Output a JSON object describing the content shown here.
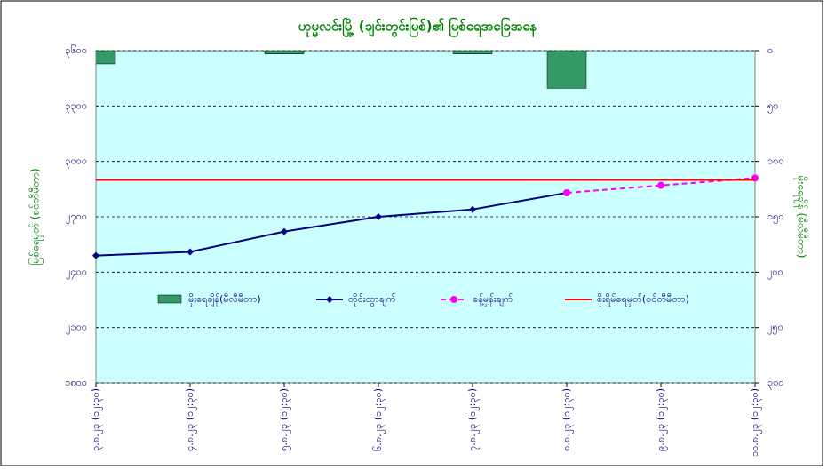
{
  "chart_data": {
    "type": "combo",
    "title": "ဟုမ္မလင်းမြို့ (ချင်းတွင်းမြစ်)၏ မြစ်ရေအခြေအနေ",
    "y_label": "မြစ်ရေမှတ် (စင်တီမီတာ)",
    "y2_label": "မိုးရေချိန် (မီလီမီတာ)",
    "categories": [
      "၃.၈.၂၃ (၁၂:၃၀)",
      "၄.၈.၂၃ (၁၂:၃၀)",
      "၅.၈.၂၃ (၁၂:၃၀)",
      "၆.၈.၂၃ (၁၂:၃၀)",
      "၇.၈.၂၃ (၁၂:၃၀)",
      "၈.၈.၂၃ (၁၂:၃၀)",
      "၉.၈.၂၃ (၁၂:၃၀)",
      "၁၀.၈.၂၃ (၁၂:၃၀)"
    ],
    "ylim": [
      1800,
      3600
    ],
    "yticks": [
      {
        "value": 1800,
        "label": "၁၈၀၀"
      },
      {
        "value": 2100,
        "label": "၂၁၀၀"
      },
      {
        "value": 2400,
        "label": "၂၄၀၀"
      },
      {
        "value": 2700,
        "label": "၂၇၀၀"
      },
      {
        "value": 3000,
        "label": "၃၀၀၀"
      },
      {
        "value": 3300,
        "label": "၃၃၀၀"
      },
      {
        "value": 3600,
        "label": "၃၆၀၀"
      }
    ],
    "y2lim": [
      300,
      0
    ],
    "y2ticks": [
      {
        "value": 0,
        "label": "၀"
      },
      {
        "value": 50,
        "label": "၅၀"
      },
      {
        "value": 100,
        "label": "၁၀၀"
      },
      {
        "value": 150,
        "label": "၁၅၀"
      },
      {
        "value": 200,
        "label": "၂၀၀"
      },
      {
        "value": 250,
        "label": "၂၅၀"
      },
      {
        "value": 300,
        "label": "၃၀၀"
      }
    ],
    "grid": true,
    "series": [
      {
        "name": "မိုးရေချိန်(မီလီမီတာ)",
        "type": "bar",
        "axis": "y2",
        "color": "#339966",
        "values": [
          12,
          null,
          3,
          null,
          3,
          34,
          null,
          null
        ]
      },
      {
        "name": "တိုင်းထွာချက်",
        "type": "line",
        "color": "#000080",
        "marker": "diamond",
        "values": [
          2490,
          2510,
          2620,
          2700,
          2740,
          2830,
          null,
          null
        ]
      },
      {
        "name": "ခန့်မှန်းချက်",
        "type": "line",
        "color": "#ff00ff",
        "dashed": true,
        "marker": "circle",
        "values": [
          null,
          null,
          null,
          null,
          null,
          2830,
          2870,
          2910
        ]
      },
      {
        "name": "စိုးရိမ်ရေမှတ်(စင်တီမီတာ)",
        "type": "hline",
        "color": "#ff0000",
        "values": [
          2900,
          2900,
          2900,
          2900,
          2900,
          2900,
          2900,
          2900
        ]
      }
    ]
  }
}
